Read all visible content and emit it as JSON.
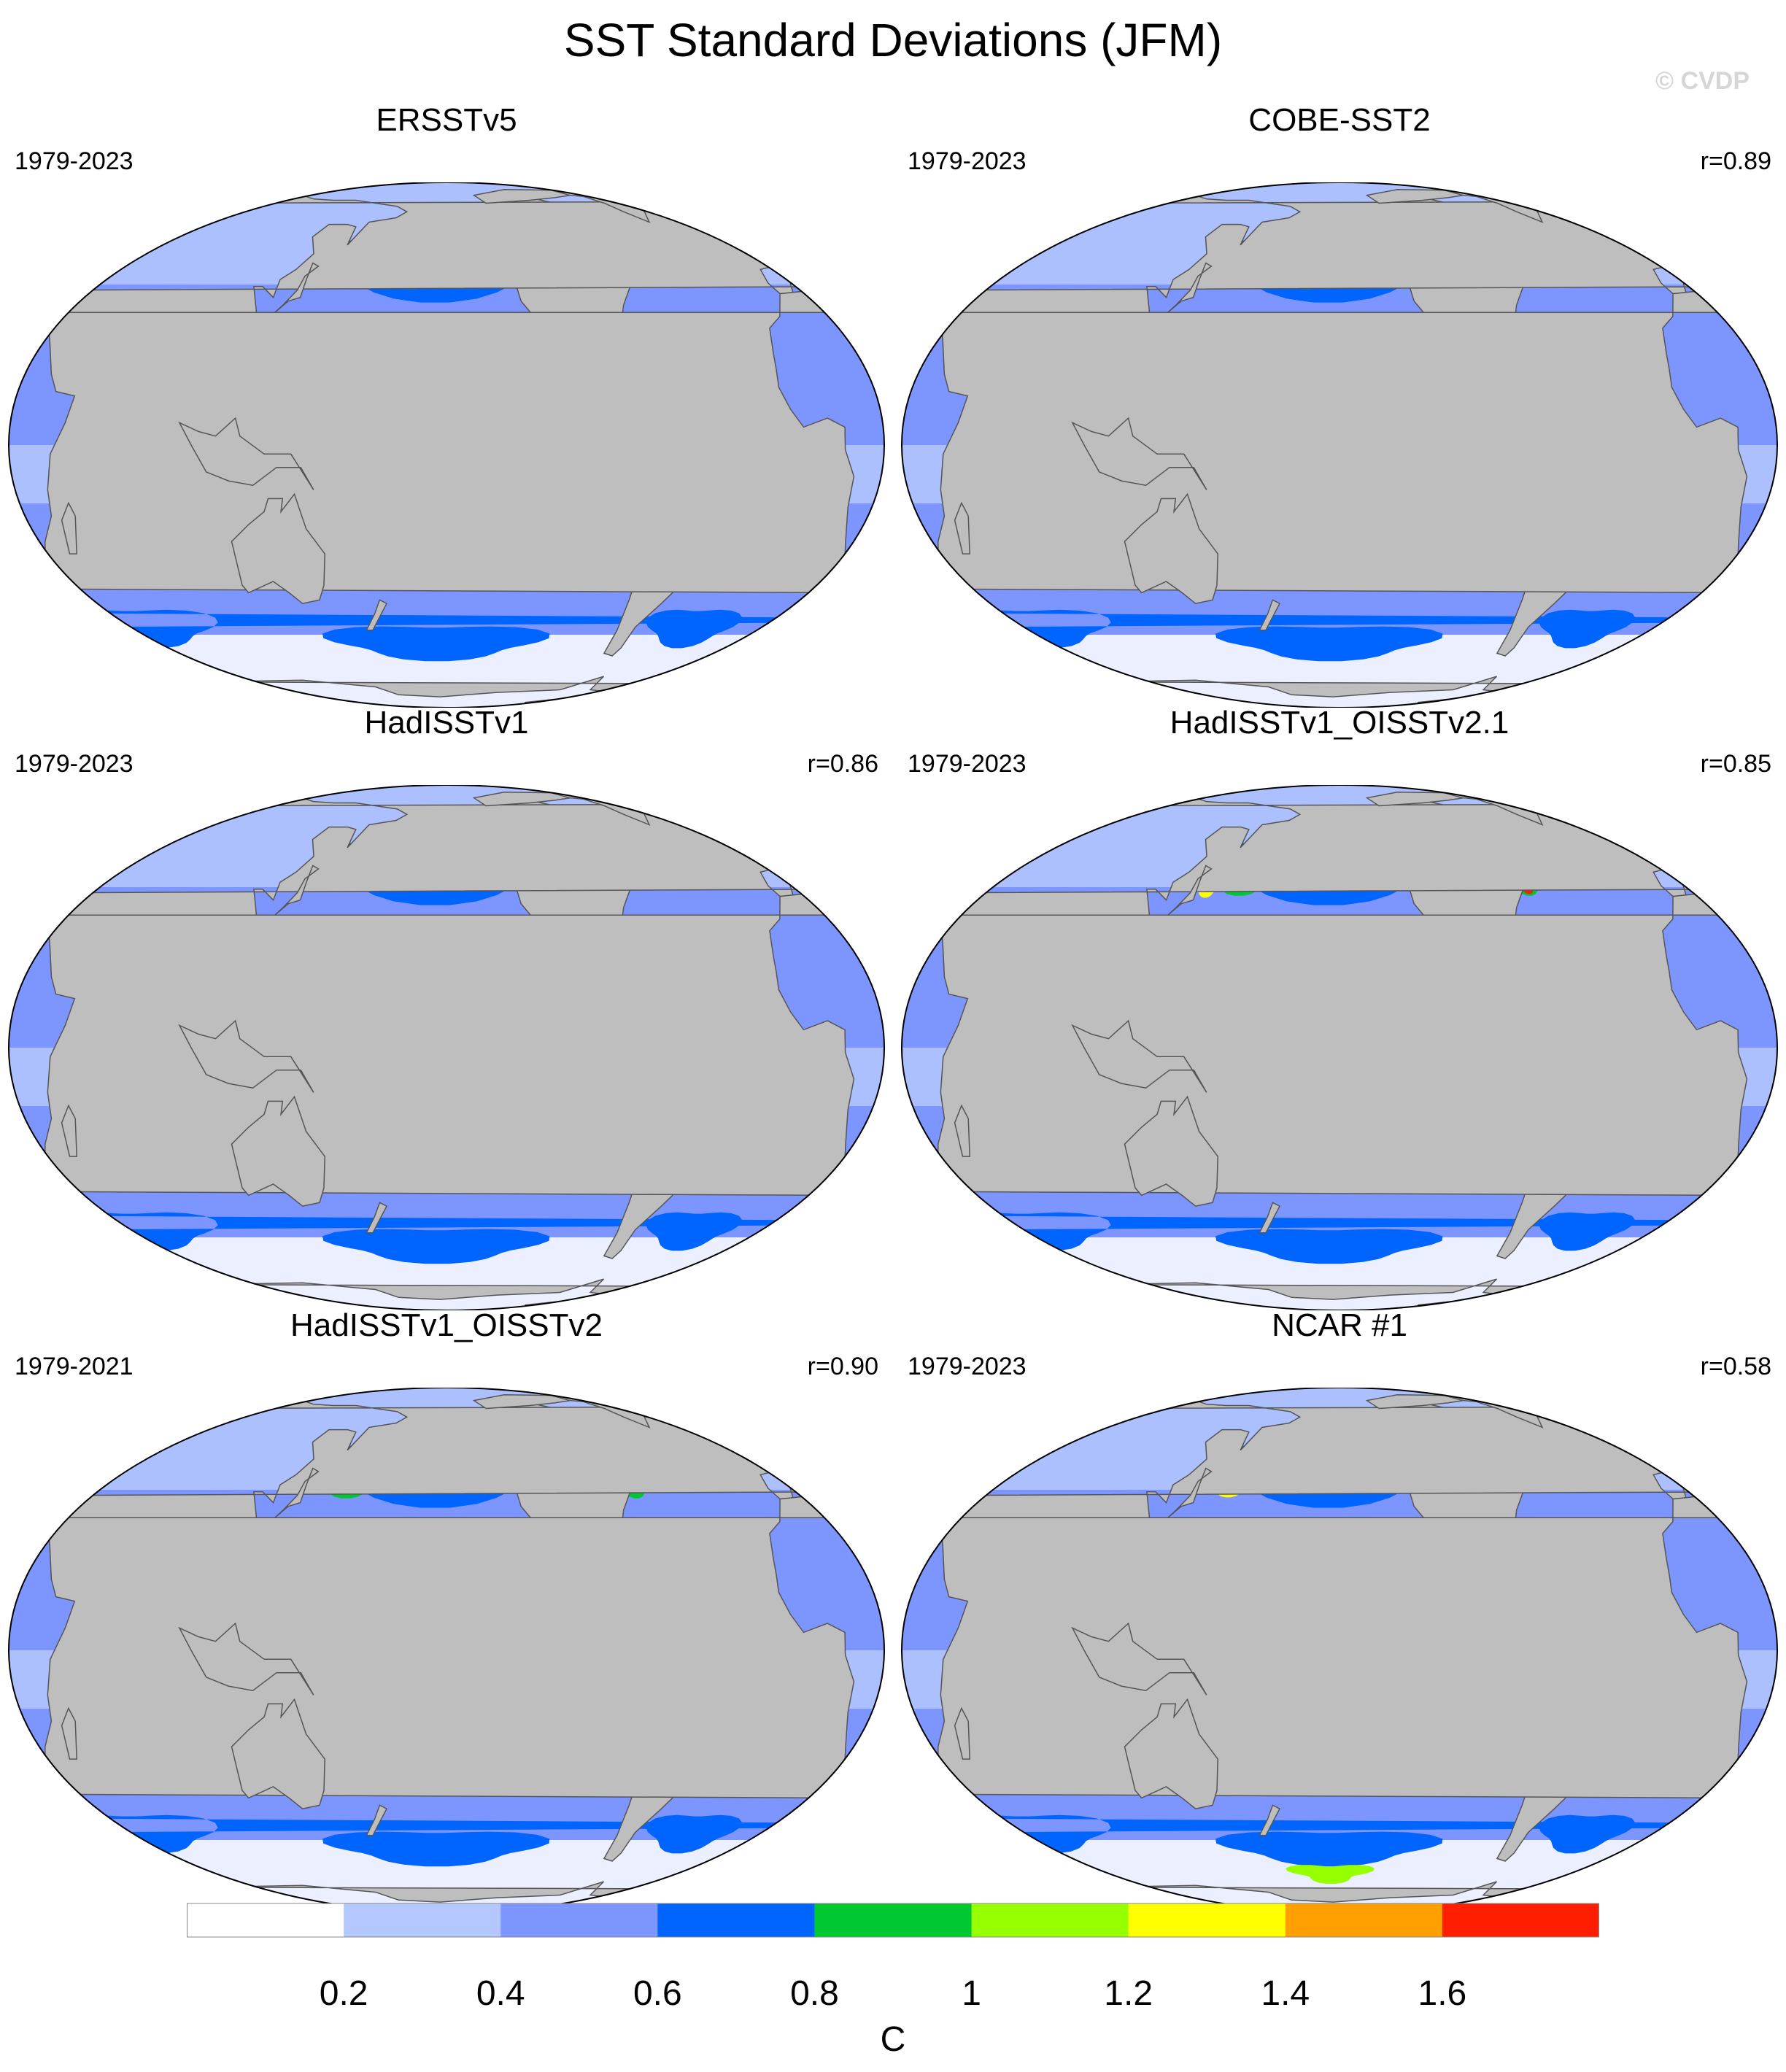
{
  "title": "SST Standard Deviations (JFM)",
  "watermark": "© CVDP",
  "panels": [
    {
      "title": "ERSSTv5",
      "period": "1979-2023",
      "corr": ""
    },
    {
      "title": "COBE-SST2",
      "period": "1979-2023",
      "corr": "r=0.89"
    },
    {
      "title": "HadISSTv1",
      "period": "1979-2023",
      "corr": "r=0.86"
    },
    {
      "title": "HadISSTv1_OISSTv2.1",
      "period": "1979-2023",
      "corr": "r=0.85"
    },
    {
      "title": "HadISSTv1_OISSTv2",
      "period": "1979-2021",
      "corr": "r=0.90"
    },
    {
      "title": "NCAR #1",
      "period": "1979-2023",
      "corr": "r=0.58"
    }
  ],
  "colorbar": {
    "unit": "C",
    "labels": [
      "0.2",
      "0.4",
      "0.6",
      "0.8",
      "1",
      "1.2",
      "1.4",
      "1.6"
    ],
    "colors": [
      "#ffffff",
      "#b4c8ff",
      "#7d96ff",
      "#0064ff",
      "#00c832",
      "#96ff00",
      "#ffff00",
      "#ffa000",
      "#ff1e00"
    ]
  },
  "colors": {
    "land": "#bebebe",
    "coast": "#555555"
  }
}
